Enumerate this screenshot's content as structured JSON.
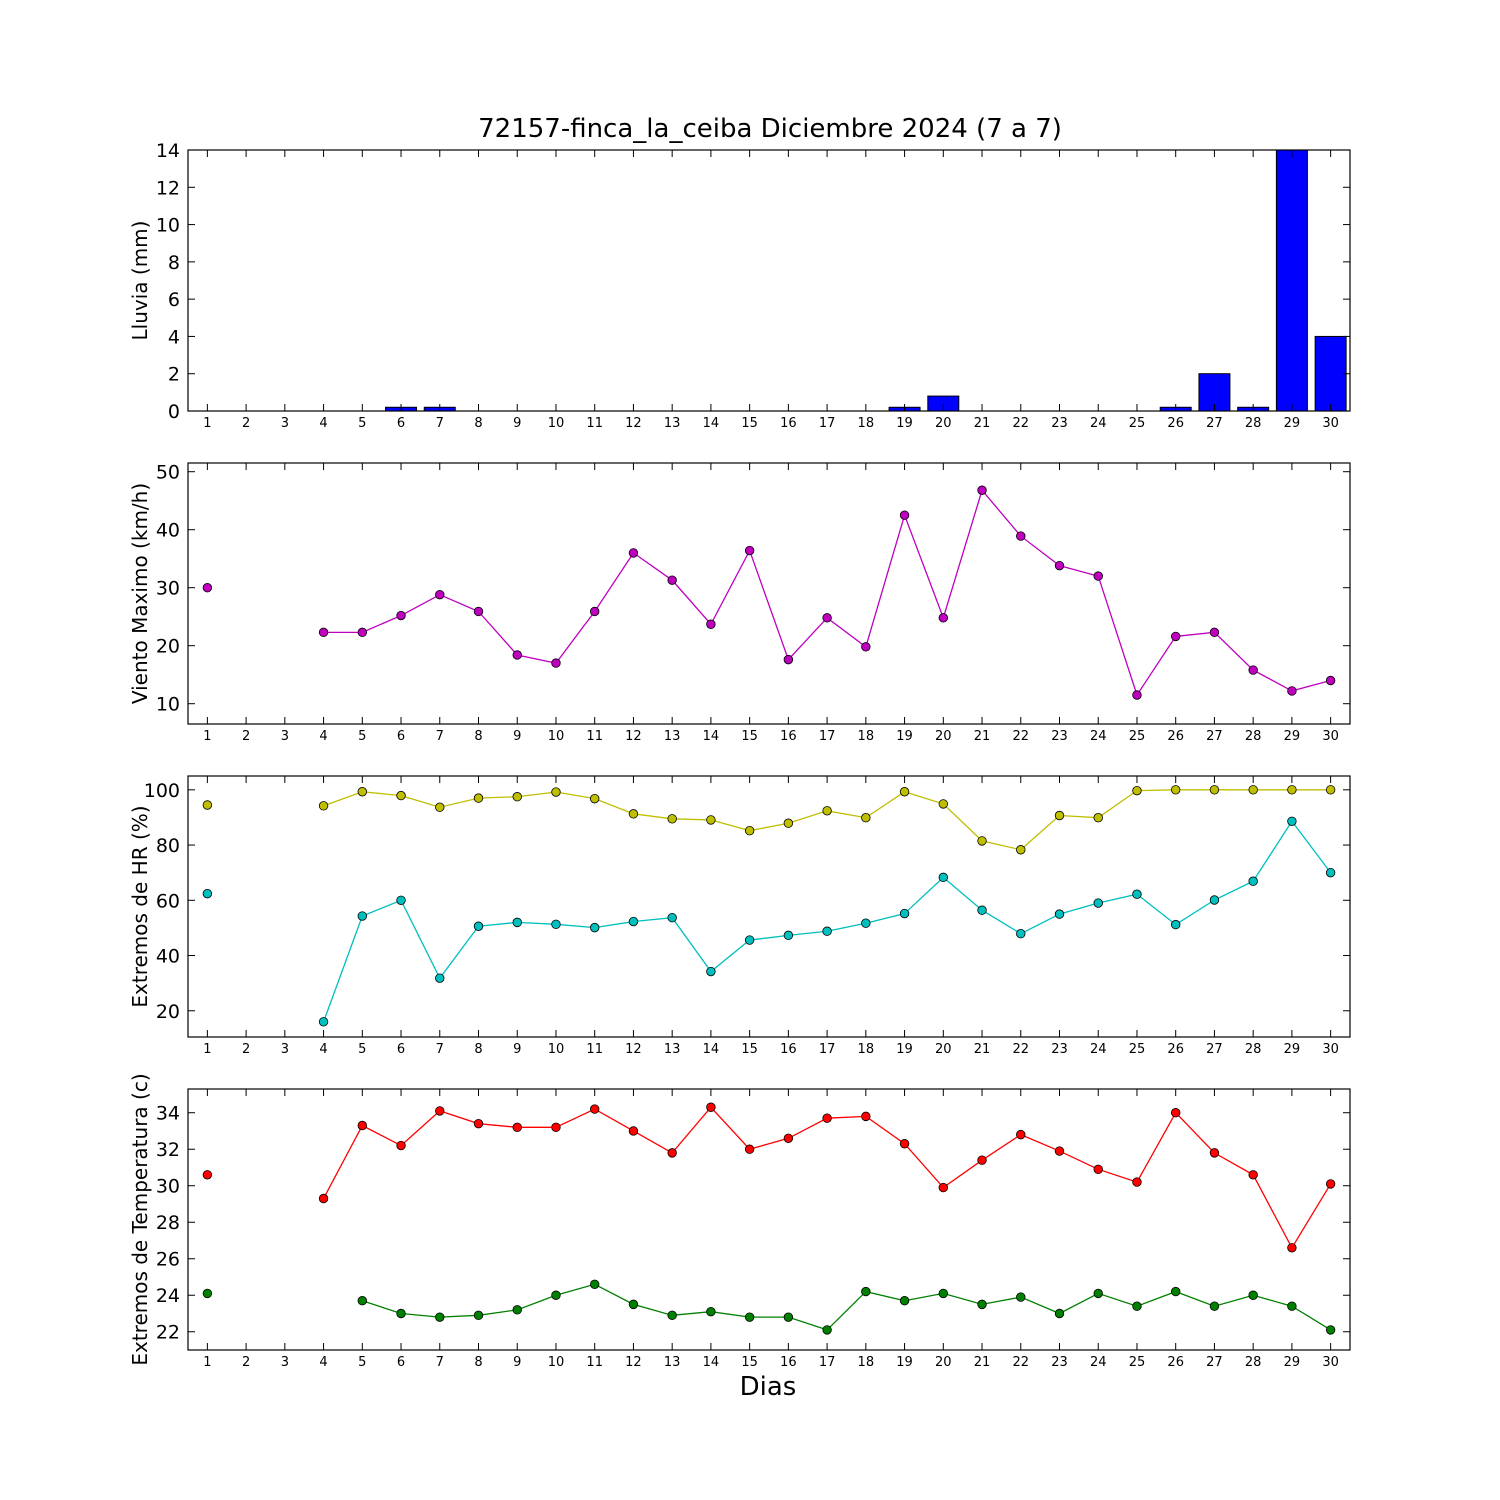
{
  "title": "72157-finca_la_ceiba Diciembre 2024  (7 a 7)",
  "xlabel": "Dias",
  "colors": {
    "rain": "#0000ff",
    "wind": "#bf00bf",
    "hr_max": "#bfbf00",
    "hr_min": "#00bfbf",
    "t_max": "#ff0000",
    "t_min": "#008000"
  },
  "chart_data": [
    {
      "type": "bar",
      "ylabel": "Lluvia (mm)",
      "ylim": [
        0,
        14
      ],
      "yticks": [
        0,
        2,
        4,
        6,
        8,
        10,
        12,
        14
      ],
      "x": [
        1,
        2,
        3,
        4,
        5,
        6,
        7,
        8,
        9,
        10,
        11,
        12,
        13,
        14,
        15,
        16,
        17,
        18,
        19,
        20,
        21,
        22,
        23,
        24,
        25,
        26,
        27,
        28,
        29,
        30
      ],
      "series": [
        {
          "values": [
            0,
            0,
            0,
            0,
            0,
            0.2,
            0.2,
            0,
            0,
            0,
            0,
            0,
            0,
            0,
            0,
            0,
            0,
            0,
            0.2,
            0.8,
            0,
            0,
            0,
            0,
            0,
            0.2,
            2.0,
            0.2,
            14.0,
            4.0
          ]
        }
      ]
    },
    {
      "type": "line",
      "ylabel": "Viento Maximo (km/h)",
      "ylim": [
        6.5,
        51.5
      ],
      "yticks": [
        10,
        20,
        30,
        40,
        50
      ],
      "x": [
        1,
        2,
        3,
        4,
        5,
        6,
        7,
        8,
        9,
        10,
        11,
        12,
        13,
        14,
        15,
        16,
        17,
        18,
        19,
        20,
        21,
        22,
        23,
        24,
        25,
        26,
        27,
        28,
        29,
        30
      ],
      "series": [
        {
          "values": [
            30.0,
            null,
            null,
            22.3,
            22.3,
            25.2,
            28.8,
            25.9,
            18.4,
            17.0,
            25.9,
            36.0,
            31.3,
            23.7,
            36.4,
            17.6,
            24.8,
            19.8,
            42.5,
            24.8,
            46.8,
            38.9,
            33.8,
            32.0,
            11.5,
            21.6,
            22.3,
            15.8,
            12.2,
            14.0
          ]
        }
      ]
    },
    {
      "type": "line",
      "ylabel": "Extremos de HR (%)",
      "ylim": [
        10.5,
        105
      ],
      "yticks": [
        20,
        40,
        60,
        80,
        100
      ],
      "x": [
        1,
        2,
        3,
        4,
        5,
        6,
        7,
        8,
        9,
        10,
        11,
        12,
        13,
        14,
        15,
        16,
        17,
        18,
        19,
        20,
        21,
        22,
        23,
        24,
        25,
        26,
        27,
        28,
        29,
        30
      ],
      "series": [
        {
          "values": [
            94.5,
            null,
            null,
            94.2,
            99.3,
            97.9,
            93.7,
            97.0,
            97.5,
            99.2,
            96.8,
            91.3,
            89.5,
            89.1,
            85.2,
            87.9,
            92.4,
            89.9,
            99.3,
            94.9,
            81.5,
            78.3,
            90.7,
            89.9,
            99.7,
            100.0,
            100.0,
            100.0,
            100.0,
            100.0
          ]
        },
        {
          "values": [
            62.4,
            null,
            null,
            16.0,
            54.3,
            60.0,
            31.8,
            50.6,
            52.0,
            51.3,
            50.1,
            52.3,
            53.7,
            34.2,
            45.6,
            47.3,
            48.8,
            51.7,
            55.2,
            68.3,
            56.4,
            47.9,
            55.0,
            59.0,
            62.2,
            51.2,
            60.1,
            66.9,
            88.6,
            70.0
          ]
        }
      ]
    },
    {
      "type": "line",
      "ylabel": "Extremos de Temperatura (c)",
      "ylim": [
        21.0,
        35.3
      ],
      "yticks": [
        22,
        24,
        26,
        28,
        30,
        32,
        34
      ],
      "x": [
        1,
        2,
        3,
        4,
        5,
        6,
        7,
        8,
        9,
        10,
        11,
        12,
        13,
        14,
        15,
        16,
        17,
        18,
        19,
        20,
        21,
        22,
        23,
        24,
        25,
        26,
        27,
        28,
        29,
        30
      ],
      "series": [
        {
          "values": [
            30.6,
            null,
            null,
            29.3,
            33.3,
            32.2,
            34.1,
            33.4,
            33.2,
            33.2,
            34.2,
            33.0,
            31.8,
            34.3,
            32.0,
            32.6,
            33.7,
            33.8,
            32.3,
            29.9,
            31.4,
            32.8,
            31.9,
            30.9,
            30.2,
            34.0,
            31.8,
            30.6,
            26.6,
            30.1
          ]
        },
        {
          "values": [
            24.1,
            null,
            null,
            null,
            23.7,
            23.0,
            22.8,
            22.9,
            23.2,
            24.0,
            24.6,
            23.5,
            22.9,
            23.1,
            22.8,
            22.8,
            22.1,
            24.2,
            23.7,
            24.1,
            23.5,
            23.9,
            23.0,
            24.1,
            23.4,
            24.2,
            23.4,
            24.0,
            23.4,
            22.1
          ]
        }
      ]
    }
  ]
}
